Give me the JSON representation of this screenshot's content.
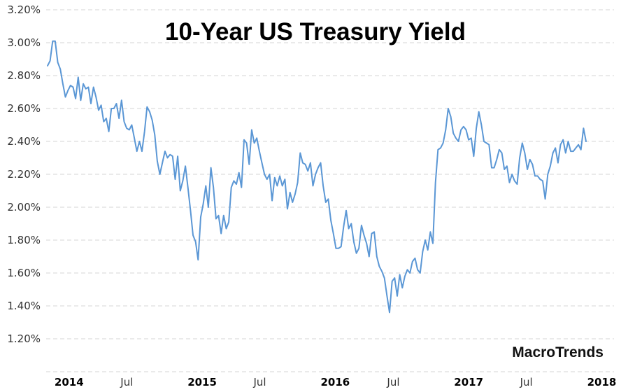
{
  "watermark": "MacroTrends",
  "chart_data": {
    "type": "line",
    "title": "10-Year US Treasury Yield",
    "xlabel": "",
    "ylabel": "",
    "unit": "percent",
    "grid": "horizontal-dashed",
    "legend": "none",
    "frequency": "weekly",
    "start_date": "2013-12-13",
    "end_date": "2017-12-29",
    "ylim": [
      1.0,
      3.2
    ],
    "colors": {
      "line": "#5b97d5",
      "grid": "#d6d6d6",
      "y_label": "#333333",
      "x_month_label": "#333333",
      "x_year_label": "#000000",
      "title": "#000000",
      "watermark": "#111111"
    },
    "y_ticks": [
      {
        "value": 3.2,
        "label": "3.20%"
      },
      {
        "value": 3.0,
        "label": "3.00%"
      },
      {
        "value": 2.8,
        "label": "2.80%"
      },
      {
        "value": 2.6,
        "label": "2.60%"
      },
      {
        "value": 2.4,
        "label": "2.40%"
      },
      {
        "value": 2.2,
        "label": "2.20%"
      },
      {
        "value": 2.0,
        "label": "2.00%"
      },
      {
        "value": 1.8,
        "label": "1.80%"
      },
      {
        "value": 1.6,
        "label": "1.60%"
      },
      {
        "value": 1.4,
        "label": "1.40%"
      },
      {
        "value": 1.2,
        "label": "1.20%"
      },
      {
        "value": 1.0,
        "label": ""
      }
    ],
    "x_ticks": [
      {
        "date": "2014-01-01",
        "label": "2014",
        "bold": true
      },
      {
        "date": "2014-07-01",
        "label": "Jul",
        "bold": false
      },
      {
        "date": "2015-01-01",
        "label": "2015",
        "bold": true
      },
      {
        "date": "2015-07-01",
        "label": "Jul",
        "bold": false
      },
      {
        "date": "2016-01-01",
        "label": "2016",
        "bold": true
      },
      {
        "date": "2016-07-01",
        "label": "Jul",
        "bold": false
      },
      {
        "date": "2017-01-01",
        "label": "2017",
        "bold": true
      },
      {
        "date": "2017-07-01",
        "label": "Jul",
        "bold": false
      },
      {
        "date": "2018-01-01",
        "label": "2018",
        "bold": true
      }
    ],
    "values": [
      2.86,
      2.89,
      3.01,
      3.01,
      2.88,
      2.84,
      2.75,
      2.67,
      2.71,
      2.74,
      2.73,
      2.66,
      2.79,
      2.65,
      2.75,
      2.72,
      2.73,
      2.63,
      2.73,
      2.67,
      2.59,
      2.62,
      2.52,
      2.54,
      2.46,
      2.6,
      2.6,
      2.63,
      2.54,
      2.65,
      2.52,
      2.48,
      2.47,
      2.5,
      2.42,
      2.34,
      2.4,
      2.34,
      2.46,
      2.61,
      2.58,
      2.53,
      2.44,
      2.28,
      2.2,
      2.27,
      2.34,
      2.3,
      2.32,
      2.31,
      2.17,
      2.31,
      2.1,
      2.16,
      2.25,
      2.12,
      1.98,
      1.83,
      1.79,
      1.68,
      1.94,
      2.02,
      2.13,
      2.0,
      2.24,
      2.12,
      1.93,
      1.95,
      1.84,
      1.95,
      1.87,
      1.91,
      2.12,
      2.16,
      2.14,
      2.21,
      2.12,
      2.41,
      2.39,
      2.26,
      2.47,
      2.39,
      2.42,
      2.34,
      2.27,
      2.2,
      2.17,
      2.2,
      2.04,
      2.18,
      2.13,
      2.19,
      2.13,
      2.17,
      1.99,
      2.09,
      2.03,
      2.08,
      2.15,
      2.33,
      2.27,
      2.26,
      2.22,
      2.27,
      2.13,
      2.2,
      2.24,
      2.27,
      2.13,
      2.03,
      2.05,
      1.92,
      1.84,
      1.75,
      1.75,
      1.76,
      1.88,
      1.98,
      1.87,
      1.9,
      1.79,
      1.72,
      1.75,
      1.89,
      1.83,
      1.78,
      1.7,
      1.84,
      1.85,
      1.7,
      1.64,
      1.61,
      1.57,
      1.46,
      1.36,
      1.55,
      1.57,
      1.46,
      1.59,
      1.51,
      1.58,
      1.62,
      1.6,
      1.67,
      1.69,
      1.62,
      1.6,
      1.73,
      1.8,
      1.74,
      1.85,
      1.78,
      2.15,
      2.35,
      2.36,
      2.39,
      2.47,
      2.6,
      2.55,
      2.45,
      2.42,
      2.4,
      2.47,
      2.49,
      2.47,
      2.41,
      2.42,
      2.31,
      2.48,
      2.58,
      2.5,
      2.4,
      2.39,
      2.38,
      2.24,
      2.24,
      2.29,
      2.35,
      2.33,
      2.23,
      2.25,
      2.15,
      2.2,
      2.16,
      2.14,
      2.3,
      2.39,
      2.33,
      2.23,
      2.29,
      2.26,
      2.19,
      2.19,
      2.17,
      2.16,
      2.05,
      2.2,
      2.25,
      2.33,
      2.36,
      2.27,
      2.38,
      2.41,
      2.33,
      2.4,
      2.34,
      2.34,
      2.36,
      2.38,
      2.35,
      2.48,
      2.4
    ]
  }
}
